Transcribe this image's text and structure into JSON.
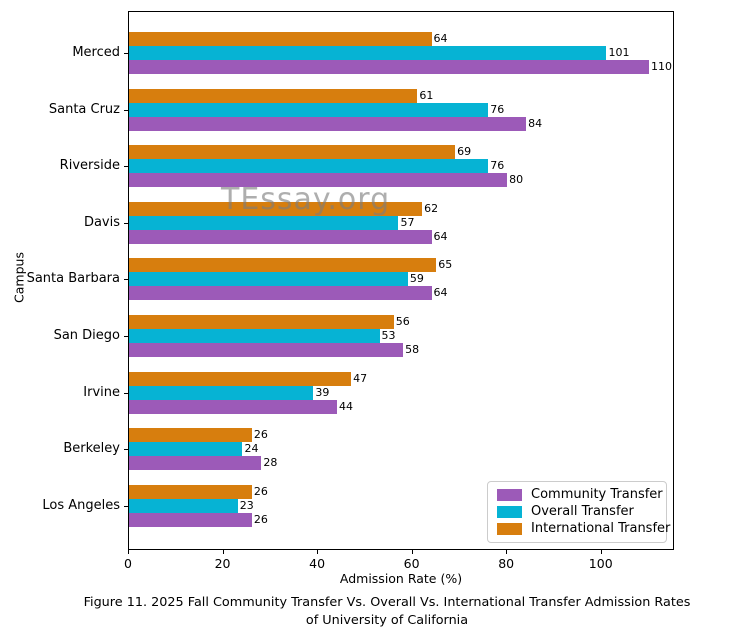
{
  "chart_data": {
    "type": "bar",
    "orientation": "horizontal",
    "xlabel": "Admission Rate (%)",
    "ylabel": "Campus",
    "categories": [
      "Merced",
      "Santa Cruz",
      "Riverside",
      "Davis",
      "Santa Barbara",
      "San Diego",
      "Irvine",
      "Berkeley",
      "Los Angeles"
    ],
    "series": [
      {
        "name": "Community Transfer",
        "color": "#9c5ab8",
        "values": [
          110,
          84,
          80,
          64,
          64,
          58,
          44,
          28,
          26
        ]
      },
      {
        "name": "Overall Transfer",
        "color": "#06b3d4",
        "values": [
          101,
          76,
          76,
          57,
          59,
          53,
          39,
          24,
          23
        ]
      },
      {
        "name": "International Transfer",
        "color": "#d77e0e",
        "values": [
          64,
          61,
          69,
          62,
          65,
          56,
          47,
          26,
          26
        ]
      }
    ],
    "group_order_top_to_bottom": [
      "International Transfer",
      "Overall Transfer",
      "Community Transfer"
    ],
    "xlim": [
      0,
      115.5
    ],
    "xticks": [
      0,
      20,
      40,
      60,
      80,
      100
    ],
    "grid": false,
    "legend_position": "lower right",
    "watermark": "TEssay.org",
    "caption_line1": "Figure 11. 2025 Fall Community Transfer Vs. Overall Vs. International Transfer Admission Rates",
    "caption_line2": "of University of California"
  },
  "colors": {
    "frame": "#000000",
    "text": "#000000",
    "watermark_gray": "#7d7d7d",
    "legend_border": "#cccccc",
    "background": "#ffffff"
  }
}
